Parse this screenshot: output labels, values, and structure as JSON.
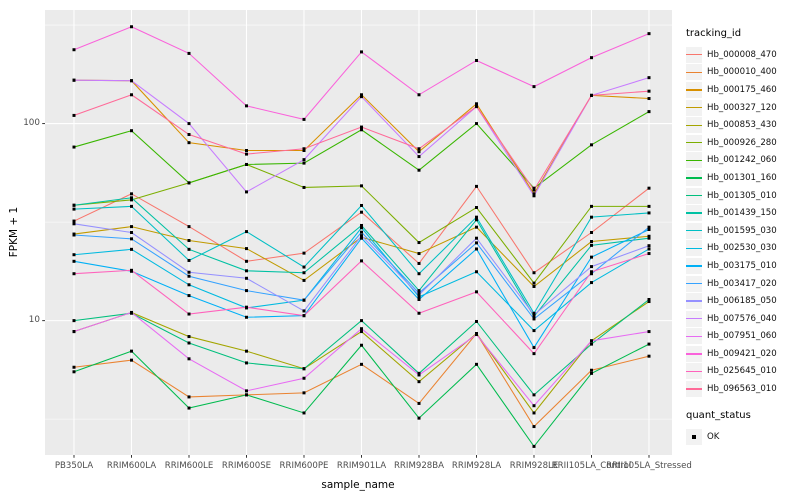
{
  "chart_data": {
    "type": "line",
    "title": "",
    "x_label": "sample_name",
    "y_label": "FPKM + 1",
    "y_scale": "log10",
    "ylim": [
      2.08,
      377
    ],
    "y_ticks": [
      100,
      10
    ],
    "y_tick_labels": [
      "100",
      "10"
    ],
    "y_minor_gridlines": [
      316.23,
      31.62,
      3.162
    ],
    "grid": true,
    "panel_background": "#EBEBEB",
    "gridline_color": "#FFFFFF",
    "point_shape": "square",
    "point_color": "#000000",
    "legend_title": "tracking_id",
    "legend_position": "right",
    "point_legend": {
      "title": "quant_status",
      "items": [
        "OK"
      ]
    },
    "categories": [
      "PB350LA",
      "RRIM600LA",
      "RRIM600LE",
      "RRIM600SE",
      "RRIM600PE",
      "RRIM901LA",
      "RRIM928BA",
      "RRIM928LA",
      "RRIM928LE",
      "RRII105LA_Control",
      "RRII105LA_Stressed"
    ],
    "series": [
      {
        "name": "Hb_000008_470",
        "color": "#F8766D",
        "values": [
          32,
          44,
          30,
          20,
          22,
          35.5,
          19.5,
          48,
          17.5,
          28,
          47
        ]
      },
      {
        "name": "Hb_000010_400",
        "color": "#EA8331",
        "values": [
          5.8,
          6.3,
          4.1,
          4.2,
          4.3,
          6.0,
          3.8,
          8.6,
          2.9,
          5.6,
          6.6
        ]
      },
      {
        "name": "Hb_000175_460",
        "color": "#D89000",
        "values": [
          166,
          165,
          80,
          73,
          73,
          140,
          72,
          126,
          44,
          139,
          134
        ]
      },
      {
        "name": "Hb_000327_120",
        "color": "#C09B00",
        "values": [
          27.5,
          30,
          25.5,
          23.2,
          16,
          26.5,
          21.9,
          29.8,
          14.9,
          25.2,
          26.8
        ]
      },
      {
        "name": "Hb_000853_430",
        "color": "#A3A500",
        "values": [
          8.8,
          11,
          8.3,
          7.0,
          5.7,
          8.8,
          4.9,
          8.6,
          3.4,
          7.9,
          12.5
        ]
      },
      {
        "name": "Hb_000926_280",
        "color": "#7CAE00",
        "values": [
          38.5,
          41,
          50,
          62,
          47.4,
          48.3,
          24.9,
          37.5,
          15.5,
          38,
          38
        ]
      },
      {
        "name": "Hb_001242_060",
        "color": "#39B600",
        "values": [
          76,
          92,
          50,
          62,
          63,
          93,
          58,
          100,
          47,
          78,
          115
        ]
      },
      {
        "name": "Hb_001301_160",
        "color": "#00BB4E",
        "values": [
          5.5,
          7.0,
          3.6,
          4.2,
          3.4,
          7.5,
          3.2,
          6.0,
          2.3,
          5.4,
          7.6
        ]
      },
      {
        "name": "Hb_001305_010",
        "color": "#00BF7D",
        "values": [
          10,
          10.9,
          7.7,
          6.1,
          5.7,
          10.0,
          5.4,
          9.9,
          4.2,
          7.6,
          12.8
        ]
      },
      {
        "name": "Hb_001439_150",
        "color": "#00C1A3",
        "values": [
          38.5,
          42,
          23,
          17.9,
          17.5,
          30.4,
          14.2,
          32.5,
          10.5,
          24.1,
          26.2
        ]
      },
      {
        "name": "Hb_001595_030",
        "color": "#00BFC4",
        "values": [
          36.8,
          38,
          20.2,
          28.3,
          18.7,
          38.4,
          17.3,
          33.5,
          10.9,
          33.5,
          35.2
        ]
      },
      {
        "name": "Hb_002530_030",
        "color": "#00BAE0",
        "values": [
          21.6,
          23,
          15.2,
          11.6,
          12.7,
          29.6,
          13.2,
          17.7,
          8.9,
          15.6,
          23.1
        ]
      },
      {
        "name": "Hb_003175_010",
        "color": "#00B0F6",
        "values": [
          20.0,
          17.8,
          13.4,
          10.4,
          10.6,
          26.2,
          12.8,
          23.1,
          7.3,
          21.0,
          29.0
        ]
      },
      {
        "name": "Hb_003417_020",
        "color": "#35A2FF",
        "values": [
          27.2,
          26,
          16.8,
          14.2,
          12.7,
          28.1,
          13.8,
          24.8,
          10.2,
          17.3,
          29.8
        ]
      },
      {
        "name": "Hb_006185_050",
        "color": "#9590FF",
        "values": [
          31,
          28,
          17.6,
          16.4,
          11.2,
          27.0,
          13.5,
          26.2,
          10.7,
          18.8,
          24.0
        ]
      },
      {
        "name": "Hb_007576_040",
        "color": "#C77CFF",
        "values": [
          166,
          165,
          100,
          45,
          65.6,
          137,
          68,
          122,
          43,
          139,
          171
        ]
      },
      {
        "name": "Hb_007951_060",
        "color": "#E76BF3",
        "values": [
          8.8,
          11,
          6.4,
          4.4,
          5.1,
          9.1,
          5.3,
          8.5,
          3.7,
          7.9,
          8.8
        ]
      },
      {
        "name": "Hb_009421_020",
        "color": "#FA62DB",
        "values": [
          237,
          310,
          227,
          123,
          105,
          231,
          140,
          209,
          154,
          216,
          286
        ]
      },
      {
        "name": "Hb_025645_010",
        "color": "#FF62BC",
        "values": [
          17.3,
          18,
          10.8,
          11.7,
          10.6,
          20.1,
          10.9,
          14.0,
          6.8,
          17.7,
          21.9
        ]
      },
      {
        "name": "Hb_096563_010",
        "color": "#FF6A98",
        "values": [
          110,
          140,
          88,
          70,
          74.5,
          96,
          74.5,
          122,
          46,
          139,
          146
        ]
      }
    ]
  }
}
